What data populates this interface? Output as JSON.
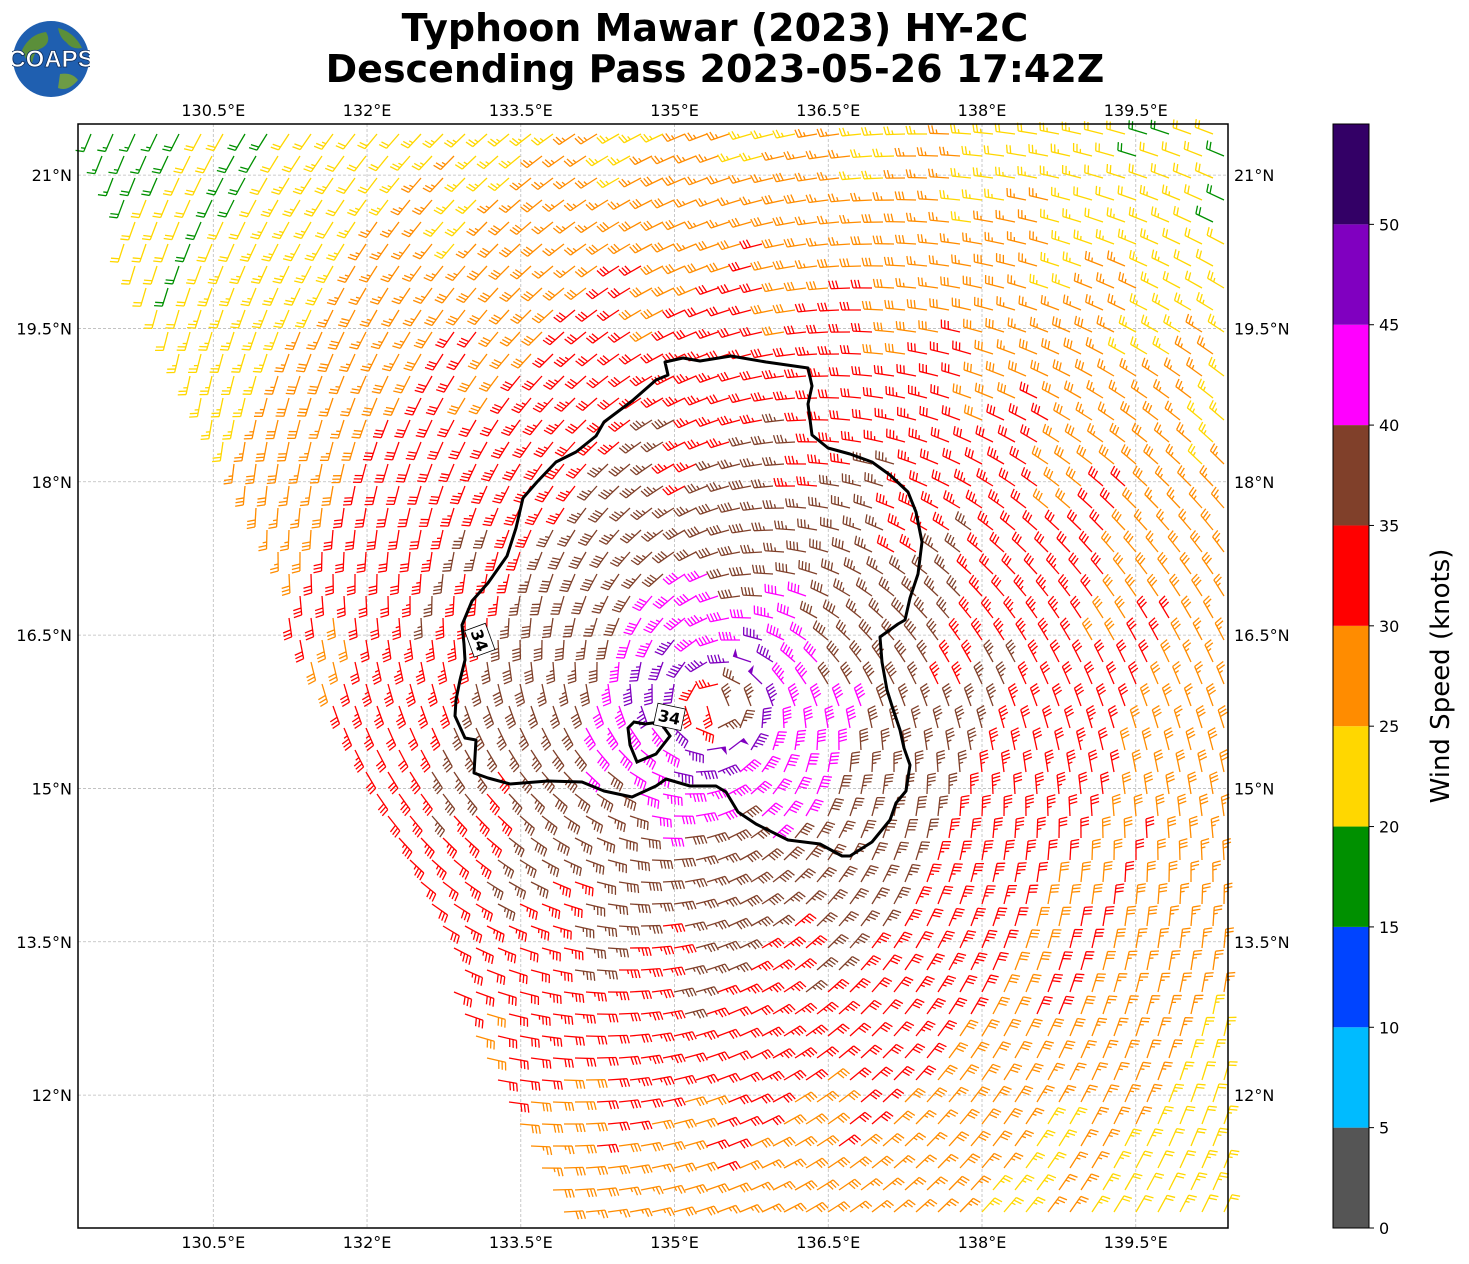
{
  "header": {
    "title_line1": "Typhoon Mawar (2023) HY-2C",
    "title_line2": "Descending Pass 2023-05-26 17:42Z",
    "logo_text": "COAPS"
  },
  "map": {
    "lon_labels": [
      "130.5°E",
      "132°E",
      "133.5°E",
      "135°E",
      "136.5°E",
      "138°E",
      "139.5°E"
    ],
    "lat_labels": [
      "21°N",
      "19.5°N",
      "18°N",
      "16.5°N",
      "15°N",
      "13.5°N",
      "12°N"
    ],
    "lon_values": [
      130.5,
      132,
      133.5,
      135,
      136.5,
      138,
      139.5
    ],
    "lat_values": [
      21,
      19.5,
      18,
      16.5,
      15,
      13.5,
      12
    ],
    "extent": {
      "lon_min": 129.18,
      "lon_max": 140.4,
      "lat_min": 10.7,
      "lat_max": 21.5
    },
    "storm_center": {
      "lon": 135.4,
      "lat": 15.8
    },
    "contour_label": "34",
    "contour_labels_at": [
      {
        "lon": 133.1,
        "lat": 16.45
      },
      {
        "lon": 134.95,
        "lat": 15.7
      }
    ]
  },
  "colorbar": {
    "label": "Wind Speed (knots)",
    "tick_labels": [
      "0",
      "5",
      "10",
      "15",
      "20",
      "25",
      "30",
      "35",
      "40",
      "45",
      "50"
    ],
    "bins": [
      {
        "min": 0,
        "max": 5,
        "color": "#555555"
      },
      {
        "min": 5,
        "max": 10,
        "color": "#00bbff"
      },
      {
        "min": 10,
        "max": 15,
        "color": "#0044ff"
      },
      {
        "min": 15,
        "max": 20,
        "color": "#009000"
      },
      {
        "min": 20,
        "max": 25,
        "color": "#ffd700"
      },
      {
        "min": 25,
        "max": 30,
        "color": "#ff8c00"
      },
      {
        "min": 30,
        "max": 35,
        "color": "#ff0000"
      },
      {
        "min": 35,
        "max": 40,
        "color": "#80402a"
      },
      {
        "min": 40,
        "max": 45,
        "color": "#ff00ff"
      },
      {
        "min": 45,
        "max": 50,
        "color": "#8000c0"
      },
      {
        "min": 50,
        "max": 55,
        "color": "#330066"
      }
    ]
  }
}
